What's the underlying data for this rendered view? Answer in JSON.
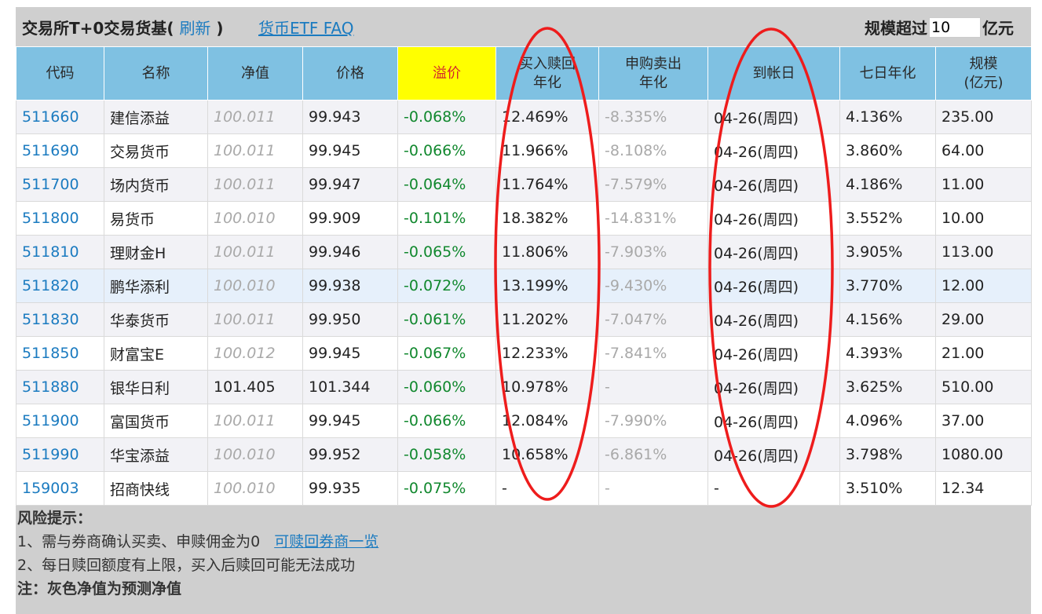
{
  "header": {
    "title": "交易所T+0交易货基(",
    "refresh": "刷新",
    "title_close": ")",
    "faq": "货币ETF FAQ",
    "scale_label": "规模超过",
    "scale_value": "10",
    "scale_unit": "亿元"
  },
  "columns": [
    "代码",
    "名称",
    "净值",
    "价格",
    "溢价",
    "买入赎回\n年化",
    "申购卖出\n年化",
    "到帐日",
    "七日年化",
    "规模\n(亿元)"
  ],
  "rows": [
    {
      "code": "511660",
      "name": "建信添益",
      "nav": "100.011",
      "price": "99.943",
      "premium": "-0.068%",
      "buy_redeem": "12.469%",
      "sub_sell": "-8.335%",
      "date": "04-26(周四)",
      "seven_day": "4.136%",
      "scale": "235.00"
    },
    {
      "code": "511690",
      "name": "交易货币",
      "nav": "100.011",
      "price": "99.945",
      "premium": "-0.066%",
      "buy_redeem": "11.966%",
      "sub_sell": "-8.108%",
      "date": "04-26(周四)",
      "seven_day": "3.860%",
      "scale": "64.00"
    },
    {
      "code": "511700",
      "name": "场内货币",
      "nav": "100.011",
      "price": "99.947",
      "premium": "-0.064%",
      "buy_redeem": "11.764%",
      "sub_sell": "-7.579%",
      "date": "04-26(周四)",
      "seven_day": "4.186%",
      "scale": "11.00"
    },
    {
      "code": "511800",
      "name": "易货币",
      "nav": "100.010",
      "price": "99.909",
      "premium": "-0.101%",
      "buy_redeem": "18.382%",
      "sub_sell": "-14.831%",
      "date": "04-26(周四)",
      "seven_day": "3.552%",
      "scale": "10.00"
    },
    {
      "code": "511810",
      "name": "理财金H",
      "nav": "100.011",
      "price": "99.946",
      "premium": "-0.065%",
      "buy_redeem": "11.806%",
      "sub_sell": "-7.903%",
      "date": "04-26(周四)",
      "seven_day": "3.905%",
      "scale": "113.00"
    },
    {
      "code": "511820",
      "name": "鹏华添利",
      "nav": "100.010",
      "price": "99.938",
      "premium": "-0.072%",
      "buy_redeem": "13.199%",
      "sub_sell": "-9.430%",
      "date": "04-26(周四)",
      "seven_day": "3.770%",
      "scale": "12.00"
    },
    {
      "code": "511830",
      "name": "华泰货币",
      "nav": "100.011",
      "price": "99.950",
      "premium": "-0.061%",
      "buy_redeem": "11.202%",
      "sub_sell": "-7.047%",
      "date": "04-26(周四)",
      "seven_day": "4.156%",
      "scale": "29.00"
    },
    {
      "code": "511850",
      "name": "财富宝E",
      "nav": "100.012",
      "price": "99.945",
      "premium": "-0.067%",
      "buy_redeem": "12.233%",
      "sub_sell": "-7.841%",
      "date": "04-26(周四)",
      "seven_day": "4.393%",
      "scale": "21.00"
    },
    {
      "code": "511880",
      "name": "银华日利",
      "nav": "101.405",
      "price": "101.344",
      "premium": "-0.060%",
      "buy_redeem": "10.978%",
      "sub_sell": "-",
      "date": "04-26(周四)",
      "seven_day": "3.625%",
      "scale": "510.00"
    },
    {
      "code": "511900",
      "name": "富国货币",
      "nav": "100.011",
      "price": "99.945",
      "premium": "-0.066%",
      "buy_redeem": "12.084%",
      "sub_sell": "-7.990%",
      "date": "04-26(周四)",
      "seven_day": "4.096%",
      "scale": "37.00"
    },
    {
      "code": "511990",
      "name": "华宝添益",
      "nav": "100.010",
      "price": "99.952",
      "premium": "-0.058%",
      "buy_redeem": "10.658%",
      "sub_sell": "-6.861%",
      "date": "04-26(周四)",
      "seven_day": "3.798%",
      "scale": "1080.00"
    },
    {
      "code": "159003",
      "name": "招商快线",
      "nav": "100.010",
      "price": "99.935",
      "premium": "-0.075%",
      "buy_redeem": "-",
      "sub_sell": "-",
      "date": "-",
      "seven_day": "3.510%",
      "scale": "12.34"
    }
  ],
  "notes": {
    "risk_title": "风险提示：",
    "line1": "1、需与券商确认买卖、申赎佣金为0",
    "broker_link": "可赎回券商一览",
    "line2": "2、每日赎回额度有上限，买入后赎回可能无法成功",
    "footnote": "注：灰色净值为预测净值"
  },
  "colors": {
    "header_bg": "#7fc1e2",
    "premium_header_bg": "#ffff00",
    "link": "#1b7bc0",
    "premium_text": "#11882e",
    "annotation_circle": "#ee1c1c"
  }
}
